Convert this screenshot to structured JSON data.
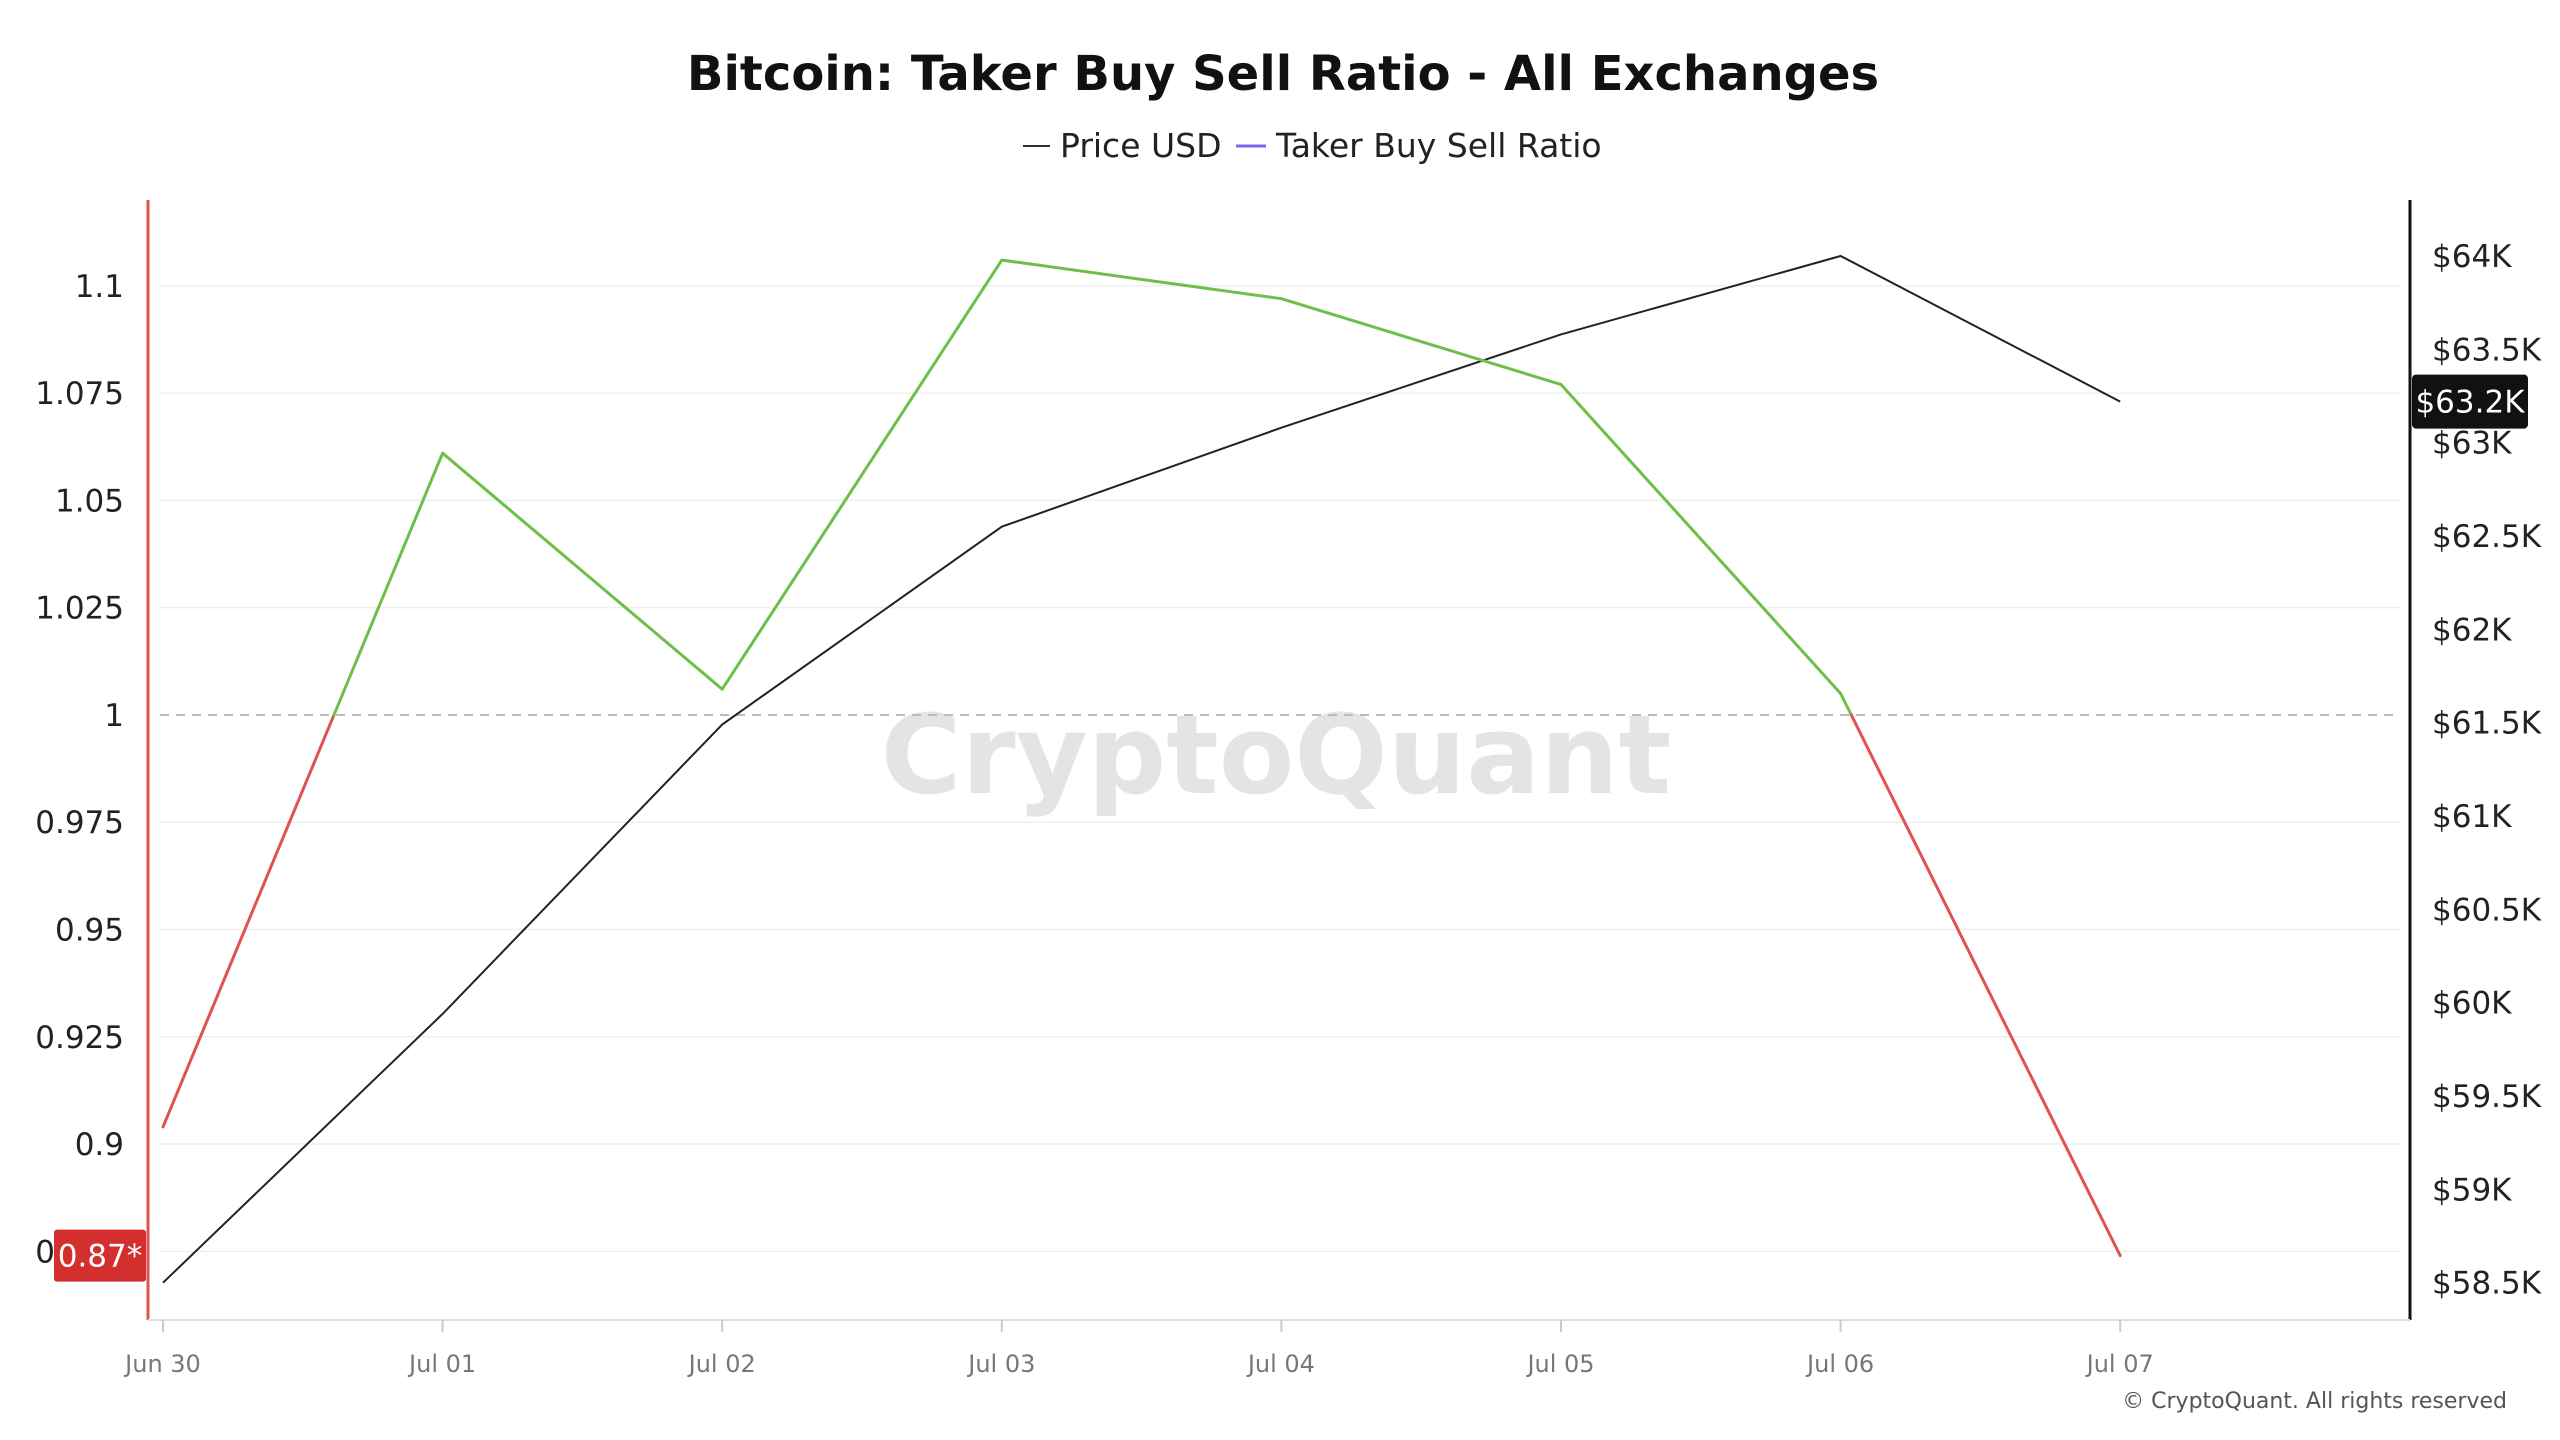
{
  "chart_data": {
    "type": "line",
    "title": "Bitcoin: Taker Buy Sell Ratio - All Exchanges",
    "categories": [
      "Jun 30",
      "Jul 01",
      "Jul 02",
      "Jul 03",
      "Jul 04",
      "Jul 05",
      "Jul 06",
      "Jul 07"
    ],
    "legend": {
      "placement": "top-center",
      "items": [
        {
          "label": "Price USD",
          "color": "#333333"
        },
        {
          "label": "Taker Buy Sell Ratio",
          "color": "#7b68ee"
        }
      ]
    },
    "series": [
      {
        "name": "Price USD",
        "axis": "right",
        "color": "#222222",
        "values": [
          58500,
          59940,
          61490,
          62550,
          63080,
          63580,
          64000,
          63220
        ]
      },
      {
        "name": "Taker Buy Sell Ratio",
        "axis": "left",
        "color_above": "#6cc04a",
        "color_below": "#e05252",
        "threshold": 1,
        "values": [
          0.904,
          1.061,
          1.006,
          1.106,
          1.097,
          1.077,
          1.005,
          0.874
        ]
      }
    ],
    "y_left": {
      "ticks": [
        "1.1",
        "1.075",
        "1.05",
        "1.025",
        "1",
        "0.975",
        "0.95",
        "0.925",
        "0.9",
        "0.875"
      ],
      "range": [
        0.859,
        1.12
      ]
    },
    "y_right": {
      "ticks": [
        "$64K",
        "$63.5K",
        "$63K",
        "$62.5K",
        "$62K",
        "$61.5K",
        "$61K",
        "$60.5K",
        "$60K",
        "$59.5K",
        "$59K",
        "$58.5K"
      ],
      "range": [
        58300,
        64300
      ]
    },
    "reference_line": {
      "value": 1,
      "style": "dashed"
    },
    "badges": {
      "left_value": "0.87*",
      "left_color": "#d32f2f",
      "right_value": "$63.2K",
      "right_color": "#111111"
    },
    "grid": true,
    "watermark": "CryptoQuant",
    "copyright": "© CryptoQuant. All rights reserved"
  }
}
